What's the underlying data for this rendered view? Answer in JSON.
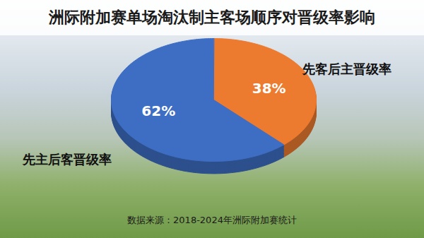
{
  "chart_data": {
    "type": "pie",
    "title": "洲际附加赛单场淘汰制主客场顺序对晋级率影响",
    "categories": [
      "先主后客晋级率",
      "先客后主晋级率"
    ],
    "values": [
      62,
      38
    ],
    "value_labels": [
      "62%",
      "38%"
    ],
    "colors": [
      "#3e6ec3",
      "#ec7b30"
    ],
    "data_labels": true,
    "caption": "数据来源：2018-2024年洲际附加赛统计"
  }
}
